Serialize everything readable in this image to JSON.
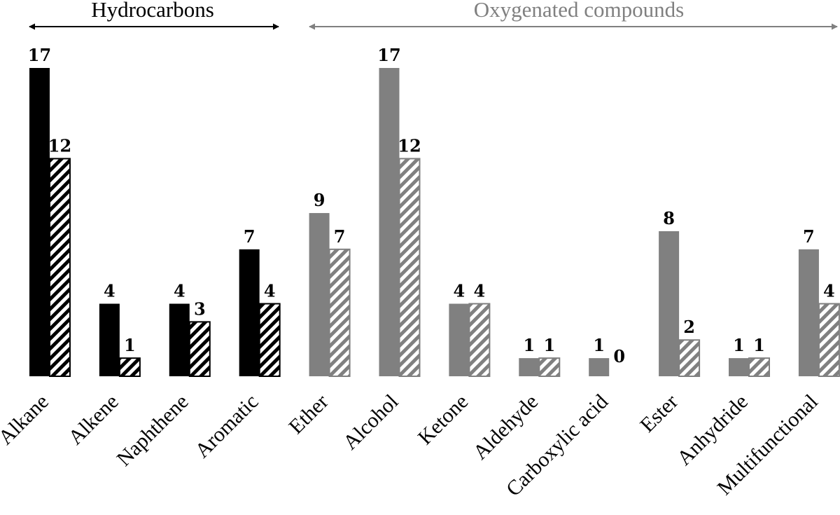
{
  "chart_data": {
    "type": "bar",
    "categories": [
      "Alkane",
      "Alkene",
      "Naphthene",
      "Aromatic",
      "Ether",
      "Alcohol",
      "Ketone",
      "Aldehyde",
      "Carboxylic acid",
      "Ester",
      "Anhydride",
      "Multifunctional"
    ],
    "series": [
      {
        "values": [
          17,
          4,
          4,
          7,
          9,
          17,
          4,
          1,
          1,
          8,
          1,
          7
        ],
        "fill": "solid"
      },
      {
        "values": [
          12,
          1,
          3,
          4,
          7,
          12,
          4,
          1,
          0,
          2,
          1,
          4
        ],
        "fill": "hatched"
      }
    ],
    "groups": [
      {
        "label": "Hydrocarbons",
        "categories": [
          "Alkane",
          "Alkene",
          "Naphthene",
          "Aromatic"
        ],
        "color": "#000000"
      },
      {
        "label": "Oxygenated compounds",
        "categories": [
          "Ether",
          "Alcohol",
          "Ketone",
          "Aldehyde",
          "Carboxylic acid",
          "Ester",
          "Anhydride",
          "Multifunctional"
        ],
        "color": "#808080"
      }
    ],
    "ylim": [
      0,
      17
    ],
    "grid": false,
    "legend": "none",
    "title": "",
    "xlabel": "",
    "ylabel": ""
  }
}
